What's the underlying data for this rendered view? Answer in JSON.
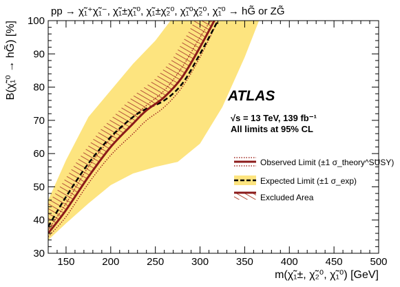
{
  "chart_data": {
    "type": "line",
    "title": "pp → χ̃₁⁺χ̃₁⁻, χ̃₁±χ̃₁⁰, χ̃₁±χ̃₂⁰, χ̃₁⁰χ̃₂⁰,  χ̃₁⁰ → hG̃ or ZG̃",
    "xlabel": "m(χ̃₁±, χ̃₂⁰, χ̃₁⁰) [GeV]",
    "ylabel": "B(χ̃₁⁰ → hG̃) [%]",
    "xlim": [
      130,
      500
    ],
    "ylim": [
      30,
      100
    ],
    "xticks": [
      "150",
      "200",
      "250",
      "300",
      "350",
      "400",
      "450",
      "500"
    ],
    "yticks": [
      "30",
      "40",
      "50",
      "60",
      "70",
      "80",
      "90",
      "100"
    ],
    "atlas_label": "ATLAS",
    "info_line1": "√s = 13 TeV, 139 fb⁻¹",
    "info_line2": "All limits at 95% CL",
    "legend": [
      "Observed Limit (±1 σ_theory^SUSY)",
      "Expected Limit (±1 σ_exp)",
      "Excluded Area"
    ],
    "legend_placement": "right",
    "colors": {
      "observed": "#8b1a1a",
      "band": "#fde47f",
      "expected": "#000000"
    },
    "series": [
      {
        "name": "Observed Limit",
        "points": [
          [
            130,
            36
          ],
          [
            150,
            43
          ],
          [
            175,
            53
          ],
          [
            200,
            62
          ],
          [
            225,
            69
          ],
          [
            240,
            73
          ],
          [
            260,
            77
          ],
          [
            280,
            83
          ],
          [
            300,
            92
          ],
          [
            316,
            100
          ]
        ]
      },
      {
        "name": "Observed +1σ theory",
        "points": [
          [
            130,
            37
          ],
          [
            150,
            45
          ],
          [
            175,
            56
          ],
          [
            200,
            64.5
          ],
          [
            225,
            71
          ],
          [
            240,
            74.5
          ],
          [
            260,
            79
          ],
          [
            280,
            86
          ],
          [
            300,
            95
          ],
          [
            312,
            100
          ]
        ]
      },
      {
        "name": "Observed −1σ theory",
        "points": [
          [
            130,
            35
          ],
          [
            150,
            41
          ],
          [
            175,
            51
          ],
          [
            200,
            59.5
          ],
          [
            225,
            66
          ],
          [
            240,
            70
          ],
          [
            260,
            74
          ],
          [
            280,
            80
          ],
          [
            300,
            89
          ],
          [
            320,
            100
          ]
        ]
      },
      {
        "name": "Expected Limit",
        "points": [
          [
            130,
            38
          ],
          [
            150,
            47
          ],
          [
            175,
            57
          ],
          [
            200,
            65
          ],
          [
            225,
            71
          ],
          [
            240,
            73.5
          ],
          [
            260,
            76
          ],
          [
            280,
            81
          ],
          [
            300,
            90
          ],
          [
            320,
            100
          ]
        ]
      },
      {
        "name": "Expected +1σ",
        "points": [
          [
            130,
            46
          ],
          [
            150,
            58
          ],
          [
            175,
            71
          ],
          [
            200,
            79
          ],
          [
            225,
            87
          ],
          [
            250,
            94
          ],
          [
            267,
            100
          ]
        ]
      },
      {
        "name": "Expected −1σ",
        "points": [
          [
            130,
            34
          ],
          [
            150,
            39
          ],
          [
            175,
            45
          ],
          [
            200,
            50.5
          ],
          [
            225,
            54
          ],
          [
            250,
            56
          ],
          [
            275,
            57.5
          ],
          [
            300,
            63
          ],
          [
            325,
            74
          ],
          [
            350,
            89
          ],
          [
            366,
            100
          ]
        ]
      }
    ]
  }
}
